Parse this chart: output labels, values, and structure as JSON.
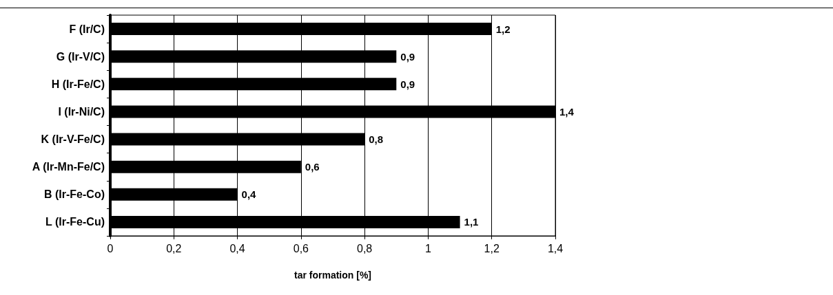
{
  "chart_data": {
    "type": "bar",
    "orientation": "horizontal",
    "xlabel": "tar formation [%]",
    "categories": [
      "F (Ir/C)",
      "G (Ir-V/C)",
      "H (Ir-Fe/C)",
      "I (Ir-Ni/C)",
      "K (Ir-V-Fe/C)",
      "A (Ir-Mn-Fe/C)",
      "B (Ir-Fe-Co)",
      "L (Ir-Fe-Cu)"
    ],
    "values": [
      1.2,
      0.9,
      0.9,
      1.4,
      0.8,
      0.6,
      0.4,
      1.1
    ],
    "value_labels": [
      "1,2",
      "0,9",
      "0,9",
      "1,4",
      "0,8",
      "0,6",
      "0,4",
      "1,1"
    ],
    "color": "#000000",
    "xlim": [
      0,
      1.4
    ],
    "xticks": [
      0,
      {
        "value": 0.2,
        "label": "0,2"
      },
      {
        "value": 0.4,
        "label": "0,4"
      },
      {
        "value": 0.6,
        "label": "0,6"
      },
      {
        "value": 0.8,
        "label": "0,8"
      },
      1,
      {
        "value": 1.2,
        "label": "1,2"
      },
      {
        "value": 1.4,
        "label": "1,4"
      }
    ],
    "grid": "x"
  }
}
